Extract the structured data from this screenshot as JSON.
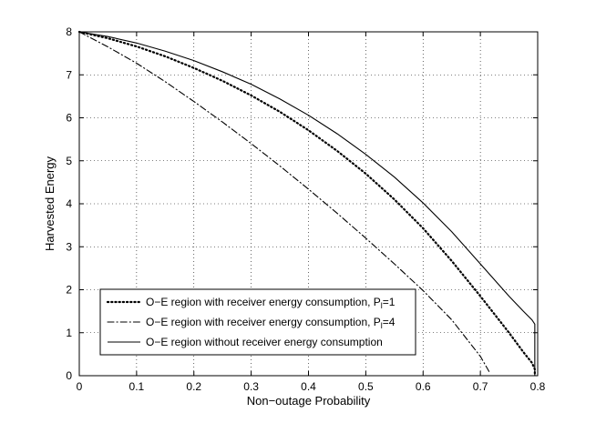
{
  "chart_data": {
    "type": "line",
    "title": "",
    "xlabel": "Non−outage Probability",
    "ylabel": "Harvested Energy",
    "xlim": [
      0,
      0.8
    ],
    "ylim": [
      0,
      8
    ],
    "xticks": [
      0,
      0.1,
      0.2,
      0.3,
      0.4,
      0.5,
      0.6,
      0.7,
      0.8
    ],
    "xtick_labels": [
      "0",
      "0.1",
      "0.2",
      "0.3",
      "0.4",
      "0.5",
      "0.6",
      "0.7",
      "0.8"
    ],
    "yticks": [
      0,
      1,
      2,
      3,
      4,
      5,
      6,
      7,
      8
    ],
    "ytick_labels": [
      "0",
      "1",
      "2",
      "3",
      "4",
      "5",
      "6",
      "7",
      "8"
    ],
    "grid": true,
    "legend_position": "bottom-left",
    "series": [
      {
        "name": "O−E region with receiver energy consumption, P",
        "subscript": "l",
        "suffix": "=1",
        "style": "dotted",
        "x": [
          0.0,
          0.05,
          0.1,
          0.15,
          0.2,
          0.25,
          0.3,
          0.35,
          0.4,
          0.45,
          0.5,
          0.55,
          0.6,
          0.65,
          0.7,
          0.75,
          0.775,
          0.79,
          0.795,
          0.795
        ],
        "y": [
          8.0,
          7.85,
          7.66,
          7.43,
          7.16,
          6.86,
          6.52,
          6.14,
          5.71,
          5.23,
          4.7,
          4.1,
          3.43,
          2.67,
          1.85,
          1.0,
          0.55,
          0.3,
          0.15,
          0.0
        ]
      },
      {
        "name": "O−E region with receiver energy consumption, P",
        "subscript": "l",
        "suffix": "=4",
        "style": "dashdot",
        "x": [
          0.0,
          0.05,
          0.1,
          0.15,
          0.2,
          0.25,
          0.3,
          0.35,
          0.4,
          0.45,
          0.5,
          0.55,
          0.6,
          0.65,
          0.7,
          0.715
        ],
        "y": [
          8.0,
          7.65,
          7.27,
          6.84,
          6.38,
          5.9,
          5.4,
          4.88,
          4.34,
          3.78,
          3.2,
          2.6,
          1.98,
          1.3,
          0.45,
          0.1
        ]
      },
      {
        "name": "O−E region without receiver energy consumption",
        "subscript": "",
        "suffix": "",
        "style": "solid",
        "x": [
          0.0,
          0.05,
          0.1,
          0.15,
          0.2,
          0.25,
          0.3,
          0.35,
          0.4,
          0.45,
          0.5,
          0.55,
          0.6,
          0.65,
          0.7,
          0.75,
          0.775,
          0.79,
          0.795,
          0.795
        ],
        "y": [
          8.0,
          7.89,
          7.74,
          7.55,
          7.33,
          7.07,
          6.78,
          6.44,
          6.06,
          5.63,
          5.15,
          4.62,
          4.02,
          3.35,
          2.6,
          1.85,
          1.5,
          1.3,
          1.2,
          0.0
        ]
      }
    ]
  }
}
